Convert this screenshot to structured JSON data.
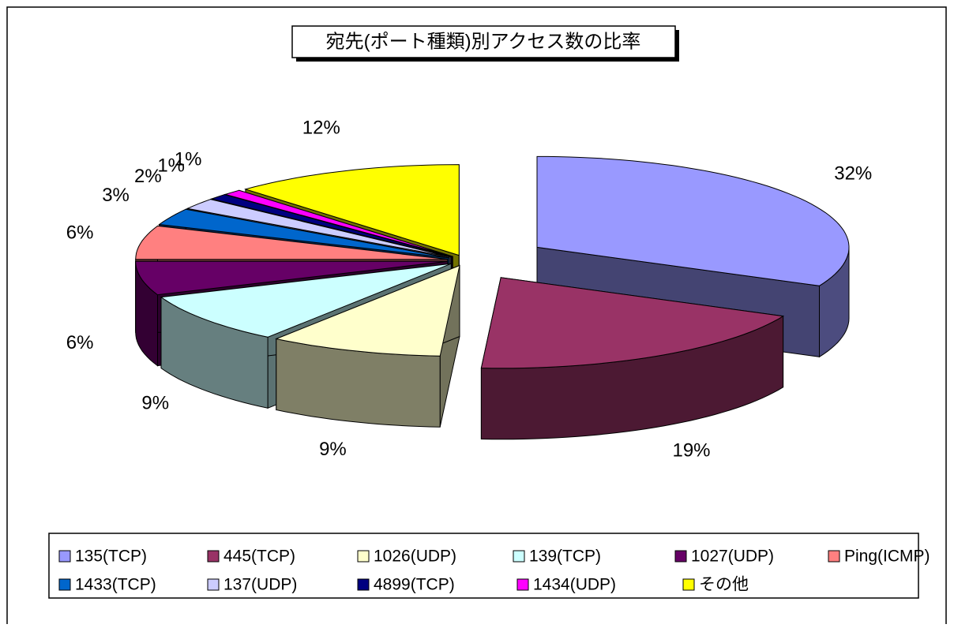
{
  "chart_data": {
    "type": "pie",
    "title": "宛先(ポート種類)別アクセス数の比率",
    "categories": [
      "135(TCP)",
      "445(TCP)",
      "1026(UDP)",
      "139(TCP)",
      "1027(UDP)",
      "Ping(ICMP)",
      "1433(TCP)",
      "137(UDP)",
      "4899(TCP)",
      "1434(UDP)",
      "その他"
    ],
    "values": [
      32,
      19,
      9,
      9,
      6,
      6,
      3,
      2,
      1,
      1,
      12
    ],
    "value_labels": [
      "32%",
      "19%",
      "9%",
      "9%",
      "6%",
      "6%",
      "3%",
      "2%",
      "1%",
      "1%",
      "12%"
    ],
    "colors": [
      "#9999ff",
      "#993366",
      "#ffffcc",
      "#ccffff",
      "#660066",
      "#ff8080",
      "#0066cc",
      "#ccccff",
      "#000080",
      "#ff00ff",
      "#ffff00"
    ],
    "legend": "bottom"
  }
}
